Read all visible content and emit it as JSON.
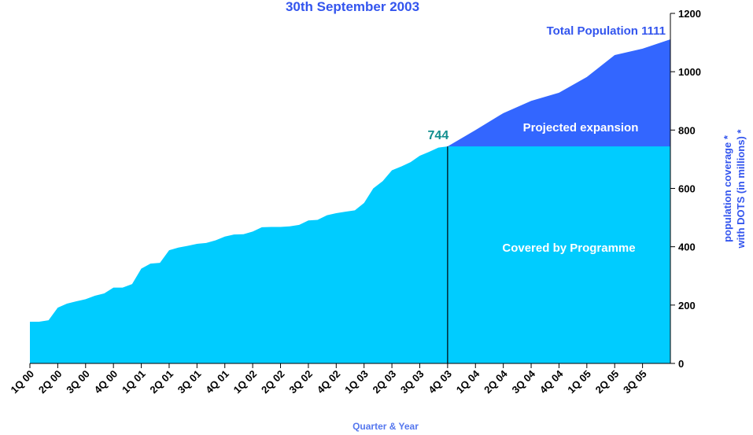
{
  "chart_data": {
    "type": "area",
    "title": "30th September 2003",
    "xlabel": "Quarter & Year",
    "ylabel": [
      "population coverage *",
      "with DOTS (in millions) *"
    ],
    "xlim": [
      0,
      23
    ],
    "xticks": [
      {
        "value": 0,
        "label": "1Q 00"
      },
      {
        "value": 1,
        "label": "2Q 00"
      },
      {
        "value": 2,
        "label": "3Q 00"
      },
      {
        "value": 3,
        "label": "4Q 00"
      },
      {
        "value": 4,
        "label": "1Q 01"
      },
      {
        "value": 5,
        "label": "2Q 01"
      },
      {
        "value": 6,
        "label": "3Q 01"
      },
      {
        "value": 7,
        "label": "4Q 01"
      },
      {
        "value": 8,
        "label": "1Q 02"
      },
      {
        "value": 9,
        "label": "2Q 02"
      },
      {
        "value": 10,
        "label": "3Q 02"
      },
      {
        "value": 11,
        "label": "4Q 02"
      },
      {
        "value": 12,
        "label": "1Q 03"
      },
      {
        "value": 13,
        "label": "2Q 03"
      },
      {
        "value": 14,
        "label": "3Q 03"
      },
      {
        "value": 15,
        "label": "4Q 03"
      },
      {
        "value": 16,
        "label": "1Q 04"
      },
      {
        "value": 17,
        "label": "2Q 04"
      },
      {
        "value": 18,
        "label": "3Q 04"
      },
      {
        "value": 19,
        "label": "4Q 04"
      },
      {
        "value": 20,
        "label": "1Q 05"
      },
      {
        "value": 21,
        "label": "2Q 05"
      },
      {
        "value": 22,
        "label": "3Q 05"
      }
    ],
    "ylim": [
      0,
      1200
    ],
    "yticks": [
      0,
      200,
      400,
      600,
      800,
      1000,
      1200
    ],
    "series": [
      {
        "name": "Projected expansion",
        "color": "#3366ff",
        "x": [
          15,
          16,
          17,
          18,
          19,
          20,
          21,
          22,
          23
        ],
        "values": [
          744,
          800,
          858,
          900,
          928,
          982,
          1057,
          1079,
          1111
        ]
      },
      {
        "name": "Covered by Programme",
        "color": "#00ccff",
        "x": [
          0,
          0.33,
          0.67,
          1,
          1.33,
          1.67,
          2,
          2.33,
          2.67,
          3,
          3.33,
          3.67,
          4,
          4.33,
          4.67,
          5,
          5.33,
          5.67,
          6,
          6.33,
          6.67,
          7,
          7.33,
          7.67,
          8,
          8.33,
          8.67,
          9,
          9.33,
          9.67,
          10,
          10.33,
          10.67,
          11,
          11.33,
          11.67,
          12,
          12.33,
          12.67,
          13,
          13.33,
          13.67,
          14,
          14.33,
          14.67,
          15,
          23
        ],
        "values": [
          143,
          143,
          148,
          191,
          205,
          213,
          220,
          232,
          240,
          260,
          260,
          272,
          325,
          342,
          345,
          388,
          397,
          403,
          410,
          413,
          422,
          435,
          442,
          443,
          452,
          467,
          468,
          468,
          470,
          475,
          490,
          492,
          508,
          515,
          520,
          525,
          550,
          600,
          625,
          662,
          675,
          690,
          712,
          725,
          740,
          744,
          744
        ]
      }
    ],
    "annotations": {
      "total": "Total Population 1111",
      "current": {
        "x": 15,
        "value": 744
      }
    }
  }
}
